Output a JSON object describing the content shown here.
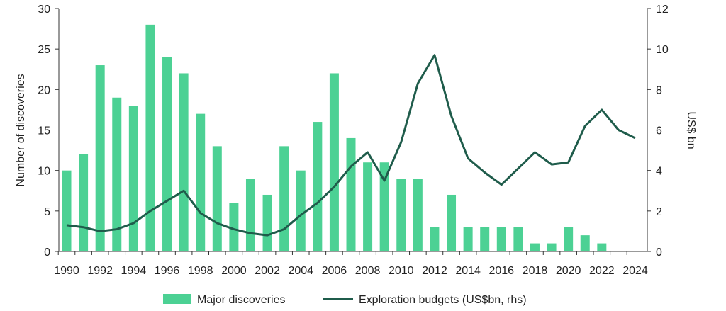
{
  "chart_data": {
    "type": "bar+line",
    "title": "",
    "categories": [
      1990,
      1991,
      1992,
      1993,
      1994,
      1995,
      1996,
      1997,
      1998,
      1999,
      2000,
      2001,
      2002,
      2003,
      2004,
      2005,
      2006,
      2007,
      2008,
      2009,
      2010,
      2011,
      2012,
      2013,
      2014,
      2015,
      2016,
      2017,
      2018,
      2019,
      2020,
      2021,
      2022,
      2023,
      2024
    ],
    "x_tick_labels": [
      "1990",
      "1992",
      "1994",
      "1996",
      "1998",
      "2000",
      "2002",
      "2004",
      "2006",
      "2008",
      "2010",
      "2012",
      "2014",
      "2016",
      "2018",
      "2020",
      "2022",
      "2024"
    ],
    "ylabel_left": "Number of discoveries",
    "ylabel_right": "US$ bn",
    "ylim_left": [
      0,
      30
    ],
    "ylim_right": [
      0,
      12
    ],
    "y_ticks_left": [
      "0",
      "5",
      "10",
      "15",
      "20",
      "25",
      "30"
    ],
    "y_ticks_right": [
      "0",
      "2",
      "4",
      "6",
      "8",
      "10",
      "12"
    ],
    "grid": false,
    "legend_position": "bottom",
    "colors": {
      "bars": "#4cd194",
      "line": "#1f5c4b",
      "axis": "#333333"
    },
    "series": [
      {
        "name": "Major discoveries",
        "type": "bar",
        "axis": "left",
        "values": [
          10,
          12,
          23,
          19,
          18,
          28,
          24,
          22,
          17,
          13,
          6,
          9,
          7,
          13,
          10,
          16,
          22,
          14,
          11,
          11,
          9,
          9,
          3,
          7,
          3,
          3,
          3,
          3,
          1,
          1,
          3,
          2,
          1,
          0,
          0
        ]
      },
      {
        "name": "Exploration budgets (US$bn, rhs)",
        "type": "line",
        "axis": "right",
        "values": [
          1.3,
          1.2,
          1.0,
          1.1,
          1.4,
          2.0,
          2.5,
          3.0,
          1.9,
          1.4,
          1.1,
          0.9,
          0.8,
          1.1,
          1.8,
          2.4,
          3.2,
          4.2,
          4.9,
          3.5,
          5.4,
          8.3,
          9.7,
          6.7,
          4.6,
          3.9,
          3.3,
          4.1,
          4.9,
          4.3,
          4.4,
          6.2,
          7.0,
          6.0,
          5.6
        ]
      }
    ]
  }
}
